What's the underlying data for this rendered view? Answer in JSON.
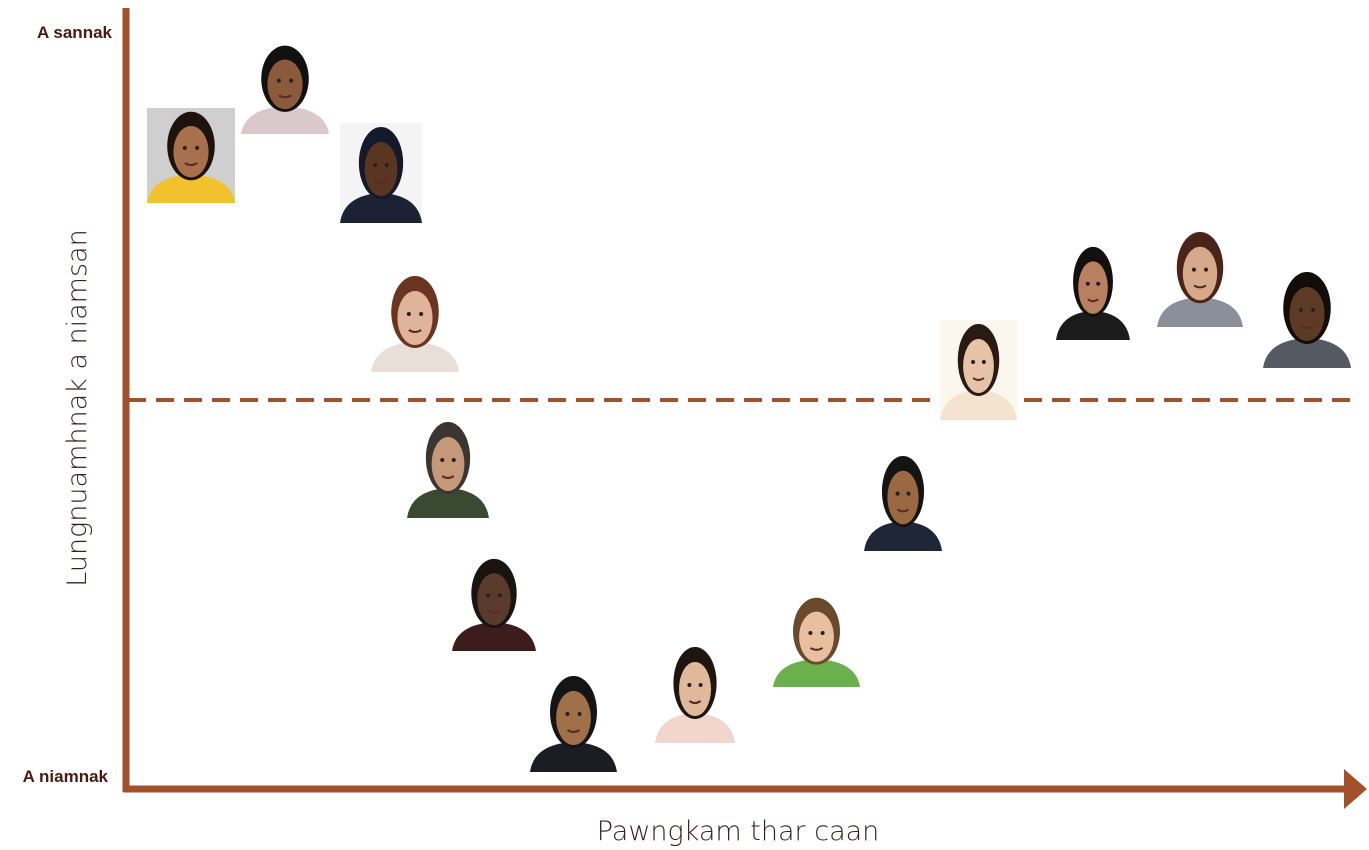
{
  "y_axis": {
    "top_label": "A sannak",
    "bottom_label": "A niamnak",
    "title": "Lungnuamhnak a niamsan"
  },
  "x_axis": {
    "title": "Pawngkam thar caan"
  }
}
